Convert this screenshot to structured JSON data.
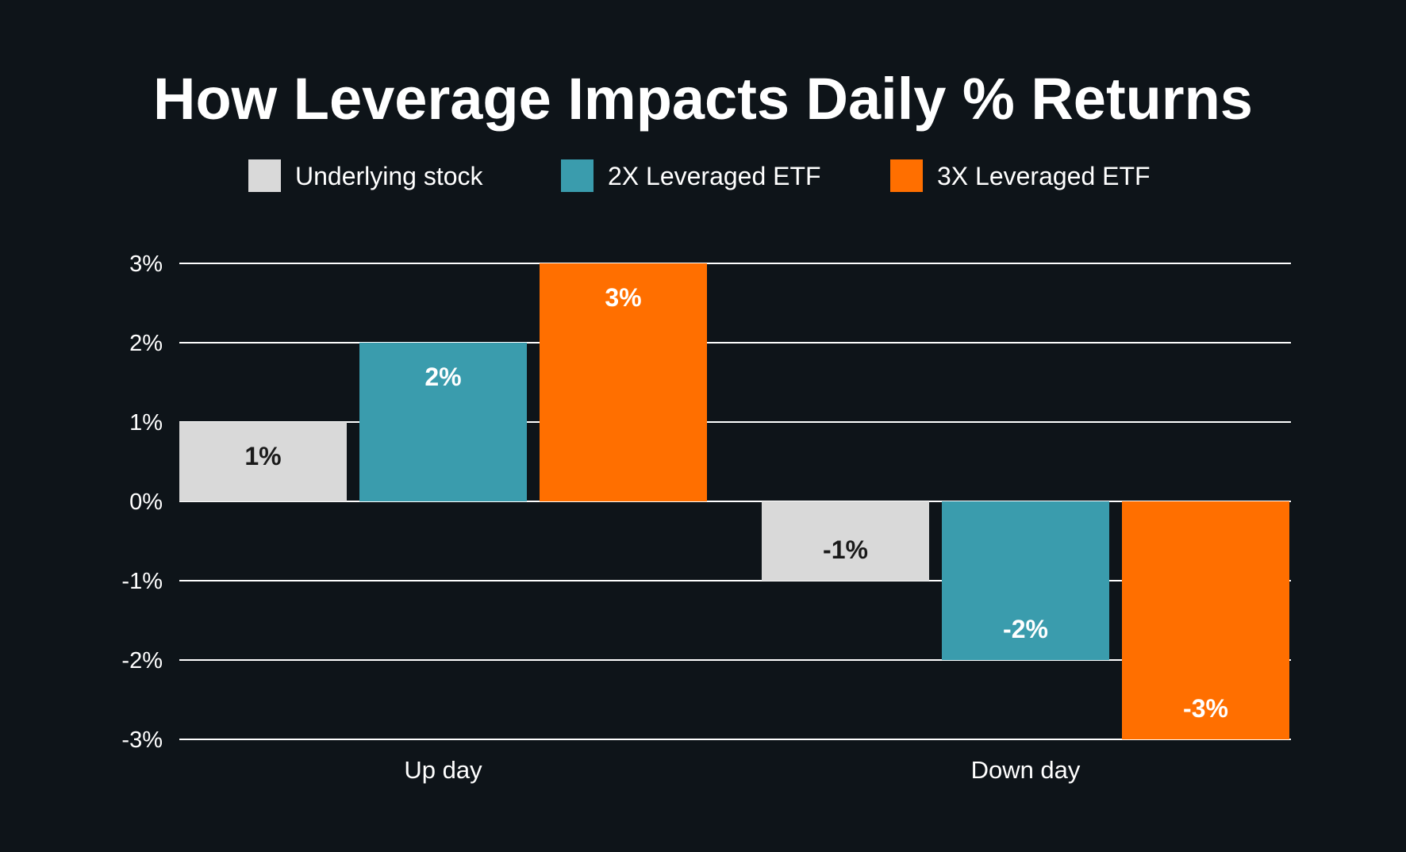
{
  "chart_data": {
    "type": "bar",
    "title": "How Leverage Impacts Daily % Returns",
    "categories": [
      "Up day",
      "Down day"
    ],
    "series": [
      {
        "name": "Underlying stock",
        "color": "#d9d9d9",
        "label_color": "#1a1a1a",
        "values": [
          1,
          -1
        ],
        "labels": [
          "1%",
          "-1%"
        ]
      },
      {
        "name": "2X Leveraged ETF",
        "color": "#3a9cad",
        "label_color": "#ffffff",
        "values": [
          2,
          -2
        ],
        "labels": [
          "2%",
          "-2%"
        ]
      },
      {
        "name": "3X Leveraged ETF",
        "color": "#ff6f00",
        "label_color": "#ffffff",
        "values": [
          3,
          -3
        ],
        "labels": [
          "3%",
          "-3%"
        ]
      }
    ],
    "yticks": [
      3,
      2,
      1,
      0,
      -1,
      -2,
      -3
    ],
    "ytick_labels": [
      "3%",
      "2%",
      "1%",
      "0%",
      "-1%",
      "-2%",
      "-3%"
    ],
    "ylim": [
      -3,
      3
    ],
    "grid": true,
    "legend": "top-center",
    "background": "#0e1419"
  }
}
